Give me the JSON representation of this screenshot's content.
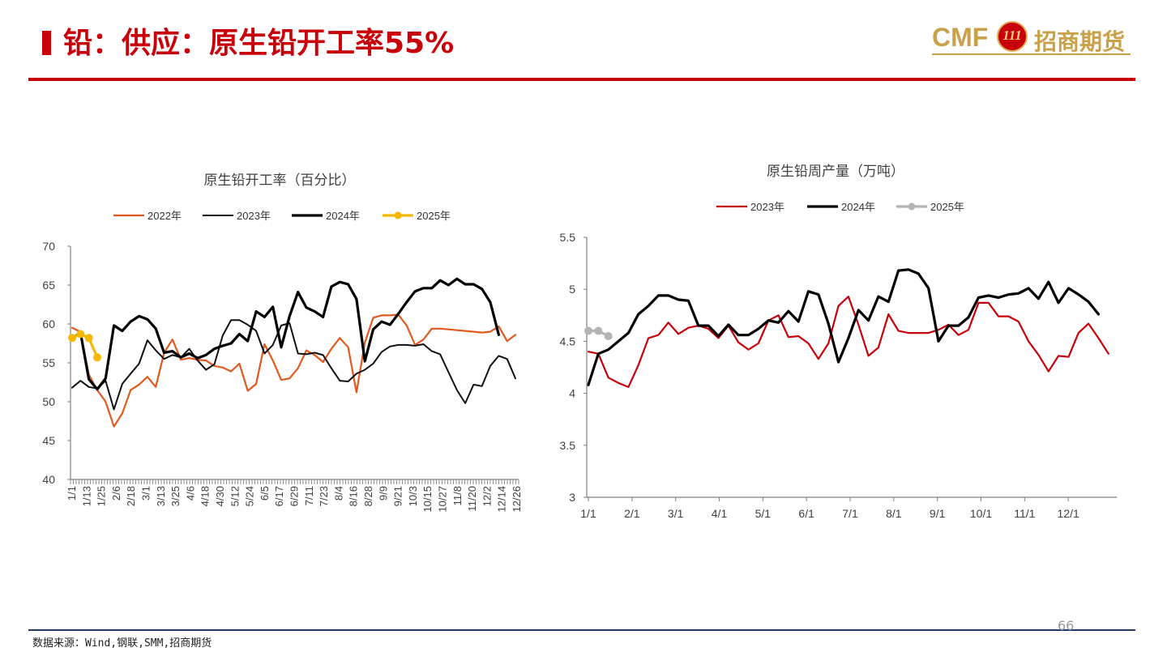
{
  "header": {
    "title": "铅：供应：原生铅开工率55%"
  },
  "logo": {
    "cmf": "CMF",
    "emblem": "111",
    "company": "招商期货"
  },
  "footer": {
    "source": "数据来源：Wind,钢联,SMM,招商期货",
    "page": "66"
  },
  "colors": {
    "brand_red": "#c8000a",
    "gold": "#c9a14a",
    "navy": "#1f3864"
  },
  "chart_data": [
    {
      "type": "line",
      "title": "原生铅开工率（百分比）",
      "ylim": [
        40,
        70
      ],
      "yticks": [
        40,
        45,
        50,
        55,
        60,
        65,
        70
      ],
      "xtick_labels": [
        "1/1",
        "1/13",
        "1/25",
        "2/6",
        "2/18",
        "3/1",
        "3/13",
        "3/25",
        "4/6",
        "4/18",
        "4/30",
        "5/12",
        "5/24",
        "6/5",
        "6/17",
        "6/29",
        "7/11",
        "7/23",
        "8/4",
        "8/16",
        "8/28",
        "9/9",
        "9/21",
        "10/3",
        "10/15",
        "10/27",
        "11/8",
        "11/20",
        "12/2",
        "12/14",
        "12/26"
      ],
      "legend_position": "top",
      "series": [
        {
          "name": "2022年",
          "color": "#e05a1e",
          "width": 2.2,
          "marker": false,
          "values": [
            59.5,
            59.0,
            53.5,
            51.5,
            50.0,
            46.8,
            48.5,
            51.5,
            52.2,
            53.2,
            51.9,
            56.3,
            58.0,
            55.4,
            55.6,
            55.4,
            55.3,
            54.6,
            54.4,
            53.9,
            54.9,
            51.4,
            52.3,
            57.4,
            55.3,
            52.8,
            53.0,
            54.3,
            56.6,
            56.0,
            55.1,
            56.8,
            58.2,
            57.0,
            51.2,
            57.6,
            60.8,
            61.1,
            61.1,
            61.2,
            59.8,
            57.3,
            58.0,
            59.4,
            59.4,
            59.3,
            59.2,
            59.1,
            59.0,
            58.9,
            59.0,
            59.7,
            57.8,
            58.6
          ]
        },
        {
          "name": "2023年",
          "color": "#111111",
          "width": 2.0,
          "marker": false,
          "values": [
            51.8,
            52.7,
            51.9,
            51.7,
            52.7,
            49.0,
            52.3,
            53.6,
            54.9,
            57.9,
            56.6,
            55.5,
            56.0,
            55.7,
            56.8,
            55.3,
            54.1,
            54.8,
            58.5,
            60.5,
            60.5,
            59.9,
            59.1,
            56.2,
            57.3,
            59.8,
            60.1,
            56.2,
            56.1,
            56.3,
            56.0,
            54.3,
            52.7,
            52.6,
            53.6,
            54.1,
            54.9,
            56.4,
            57.1,
            57.3,
            57.3,
            57.2,
            57.4,
            56.5,
            56.1,
            53.8,
            51.5,
            49.8,
            52.2,
            52.0,
            54.6,
            55.9,
            55.5,
            53.0
          ]
        },
        {
          "name": "2024年",
          "color": "#000000",
          "width": 3.2,
          "marker": false,
          "values": [
            58.1,
            58.9,
            52.9,
            51.6,
            53.0,
            59.8,
            59.1,
            60.3,
            61.0,
            60.6,
            59.4,
            56.3,
            56.5,
            55.7,
            56.2,
            55.6,
            56.0,
            56.8,
            57.2,
            57.5,
            58.7,
            57.8,
            61.6,
            60.9,
            62.2,
            57.0,
            61.0,
            64.1,
            62.1,
            61.6,
            60.9,
            64.8,
            65.4,
            65.1,
            63.2,
            55.2,
            59.3,
            60.3,
            59.9,
            61.3,
            62.8,
            64.2,
            64.6,
            64.6,
            65.6,
            65.0,
            65.8,
            65.1,
            65.1,
            64.5,
            62.8,
            58.6
          ]
        },
        {
          "name": "2025年",
          "color": "#f5b800",
          "width": 3.2,
          "marker": true,
          "values": [
            58.2,
            58.7,
            58.2,
            55.7
          ]
        }
      ]
    },
    {
      "type": "line",
      "title": "原生铅周产量（万吨）",
      "ylim": [
        3,
        5.5
      ],
      "yticks": [
        3,
        3.5,
        4,
        4.5,
        5,
        5.5
      ],
      "xtick_labels": [
        "1/1",
        "2/1",
        "3/1",
        "4/1",
        "5/1",
        "6/1",
        "7/1",
        "8/1",
        "9/1",
        "10/1",
        "11/1",
        "12/1"
      ],
      "legend_position": "top",
      "series": [
        {
          "name": "2023年",
          "color": "#c8000a",
          "width": 2.2,
          "marker": false,
          "values": [
            4.4,
            4.38,
            4.15,
            4.1,
            4.06,
            4.27,
            4.53,
            4.56,
            4.68,
            4.57,
            4.63,
            4.65,
            4.62,
            4.53,
            4.65,
            4.49,
            4.42,
            4.48,
            4.7,
            4.75,
            4.54,
            4.55,
            4.48,
            4.33,
            4.48,
            4.84,
            4.93,
            4.66,
            4.36,
            4.44,
            4.76,
            4.6,
            4.58,
            4.58,
            4.58,
            4.61,
            4.66,
            4.56,
            4.61,
            4.87,
            4.87,
            4.74,
            4.74,
            4.69,
            4.5,
            4.37,
            4.21,
            4.36,
            4.35,
            4.58,
            4.67,
            4.53,
            4.38
          ]
        },
        {
          "name": "2024年",
          "color": "#000000",
          "width": 3.2,
          "marker": false,
          "values": [
            4.08,
            4.38,
            4.42,
            4.5,
            4.58,
            4.76,
            4.84,
            4.94,
            4.94,
            4.9,
            4.89,
            4.65,
            4.65,
            4.55,
            4.66,
            4.56,
            4.56,
            4.62,
            4.7,
            4.68,
            4.79,
            4.69,
            4.98,
            4.95,
            4.67,
            4.3,
            4.53,
            4.8,
            4.7,
            4.93,
            4.88,
            5.18,
            5.19,
            5.15,
            5.01,
            4.5,
            4.65,
            4.65,
            4.73,
            4.92,
            4.94,
            4.92,
            4.95,
            4.96,
            5.01,
            4.91,
            5.07,
            4.87,
            5.01,
            4.95,
            4.88,
            4.76
          ]
        },
        {
          "name": "2025年",
          "color": "#b4b4b4",
          "width": 3.2,
          "marker": true,
          "values": [
            4.6,
            4.6,
            4.55
          ]
        }
      ]
    }
  ]
}
